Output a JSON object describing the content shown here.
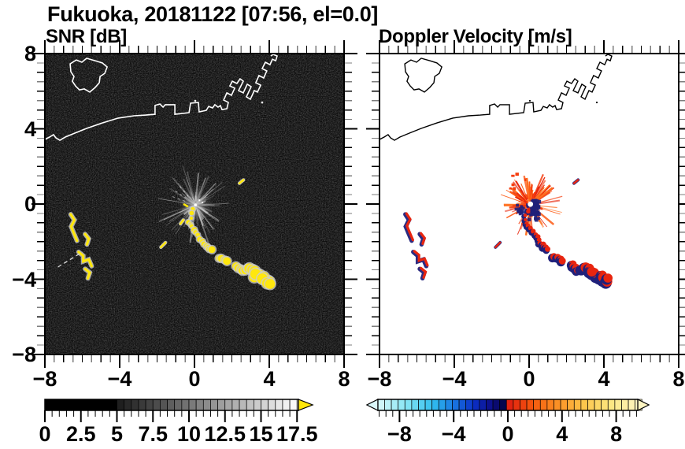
{
  "title": "Fukuoka, 20181122 [07:56, el=0.0]",
  "panels": {
    "left": {
      "subtitle": "SNR [dB]"
    },
    "right": {
      "subtitle": "Doppler Velocity [m/s]"
    }
  },
  "axes": {
    "x_tick_labels": [
      "−8",
      "−4",
      "0",
      "4",
      "8"
    ],
    "y_tick_labels": [
      "8",
      "4",
      "0",
      "−4",
      "−8"
    ],
    "x_tick_values": [
      -8,
      -4,
      0,
      4,
      8
    ],
    "y_tick_values": [
      8,
      4,
      0,
      -4,
      -8
    ],
    "x_range": [
      -8,
      8
    ],
    "y_range": [
      -8,
      8
    ],
    "major_step": 4,
    "minor_step": 0.5
  },
  "colors": {
    "frame": "#000000",
    "background": "#ffffff",
    "panel_bg_left": "#060606",
    "coast_left": "#ffffff",
    "coast_right": "#000000",
    "clutter_ray": "#a0a0a0",
    "echo_strong": "#ffe70d",
    "echo_fringe": "#cccccc",
    "vel_positive": "#e8250f",
    "vel_negative": "#20207a",
    "minor_tick_half": "#7d7d7d"
  },
  "colorbars": {
    "snr": {
      "tick_labels": [
        "0",
        "2.5",
        "5",
        "7.5",
        "10",
        "12.5",
        "15",
        "17.5"
      ],
      "tick_values": [
        0,
        2.5,
        5,
        7.5,
        10,
        12.5,
        15,
        17.5
      ],
      "range": [
        0,
        17.6
      ],
      "segment_step": 0.5,
      "stops": [
        [
          0,
          "#000000"
        ],
        [
          4.9,
          "#000000"
        ],
        [
          5.2,
          "#1e1e1e"
        ],
        [
          17.6,
          "#ffffff"
        ]
      ],
      "overflow_color": "#ffe60a"
    },
    "velocity": {
      "tick_labels": [
        "−8",
        "−4",
        "0",
        "4",
        "8"
      ],
      "tick_values": [
        -8,
        -4,
        0,
        4,
        8
      ],
      "range": [
        -9.6,
        9.6
      ],
      "segment_step": 0.5,
      "stops": [
        [
          -9.6,
          "#d9f7fa"
        ],
        [
          -7.5,
          "#86e5f4"
        ],
        [
          -5.5,
          "#30bdee"
        ],
        [
          -4,
          "#1a77e2"
        ],
        [
          -2.5,
          "#0b2fc6"
        ],
        [
          -1.2,
          "#0d0d86"
        ],
        [
          -0.1,
          "#03033e"
        ],
        [
          0.1,
          "#e02010"
        ],
        [
          1.8,
          "#f5570e"
        ],
        [
          3.5,
          "#fb8c22"
        ],
        [
          5.5,
          "#fdc348"
        ],
        [
          7.5,
          "#fce67e"
        ],
        [
          9.6,
          "#fdf5c2"
        ]
      ]
    }
  },
  "chart_data": {
    "type": "heatmap",
    "site": "Fukuoka",
    "date": "20181122",
    "time": "07:56",
    "elevation_deg": 0.0,
    "xlim": [
      -8,
      8
    ],
    "ylim": [
      -8,
      8
    ],
    "panels": [
      {
        "title": "SNR [dB]",
        "units": "dB",
        "colorbar_range": [
          0,
          17.5
        ],
        "colorbar_ticks": [
          0,
          2.5,
          5,
          7.5,
          10,
          12.5,
          15,
          17.5
        ],
        "palette": "black to white, overflow (>17.5 dB) yellow",
        "background": "black with faint speckle noise"
      },
      {
        "title": "Doppler Velocity [m/s]",
        "units": "m/s",
        "colorbar_range": [
          -9.6,
          9.6
        ],
        "colorbar_ticks": [
          -8,
          -4,
          0,
          4,
          8
        ],
        "palette": "pale cyan→blue→dark navy for negative, red→orange→cream for positive",
        "background": "white"
      }
    ],
    "features": {
      "radar_clutter_starburst": {
        "center": [
          0.05,
          -0.05
        ],
        "radius": 1.7,
        "ray_count": 130
      },
      "echo_chain": {
        "points": [
          [
            -0.08,
            -0.33
          ],
          [
            -0.29,
            -0.92
          ],
          [
            0,
            -1.38
          ],
          [
            0.34,
            -1.84
          ],
          [
            0.63,
            -2.26
          ],
          [
            0.88,
            -2.47
          ],
          [
            1.31,
            -2.85
          ],
          [
            1.73,
            -3.06
          ],
          [
            2.23,
            -3.31
          ],
          [
            2.57,
            -3.56
          ],
          [
            2.99,
            -3.43
          ],
          [
            3.33,
            -3.72
          ],
          [
            3.71,
            -3.93
          ],
          [
            4.0,
            -4.14
          ]
        ],
        "gaps_after_index": [
          5,
          7
        ]
      },
      "west_cluster": {
        "squiggles": [
          [
            [
              -6.62,
              -0.55
            ],
            [
              -6.42,
              -0.85
            ],
            [
              -6.6,
              -1.2
            ],
            [
              -6.45,
              -1.55
            ],
            [
              -6.28,
              -1.95
            ]
          ],
          [
            [
              -5.85,
              -1.6
            ],
            [
              -5.65,
              -1.85
            ],
            [
              -5.75,
              -2.15
            ]
          ],
          [
            [
              -6.2,
              -2.55
            ],
            [
              -5.95,
              -2.75
            ],
            [
              -5.95,
              -3.05
            ],
            [
              -5.65,
              -2.95
            ],
            [
              -5.5,
              -3.3
            ]
          ],
          [
            [
              -5.85,
              -3.45
            ],
            [
              -5.6,
              -3.65
            ],
            [
              -5.7,
              -3.95
            ]
          ]
        ]
      },
      "white_dash": [
        [
          -7.3,
          -3.35
        ],
        [
          -6.0,
          -2.55
        ]
      ],
      "center_dash": [
        [
          -0.55,
          -0.02
        ],
        [
          -0.38,
          -0.12
        ]
      ],
      "mid_dash": [
        [
          -1.8,
          -2.3
        ],
        [
          -1.55,
          -2.05
        ]
      ],
      "ne_speck": [
        [
          2.4,
          1.1
        ],
        [
          2.62,
          1.28
        ]
      ],
      "spur": [
        [
          -0.75,
          -1.05
        ],
        [
          -0.6,
          -0.85
        ]
      ]
    },
    "coastline": {
      "mainland": [
        [
          -8,
          3.43
        ],
        [
          -7.75,
          3.56
        ],
        [
          -7.54,
          3.69
        ],
        [
          -7.41,
          3.52
        ],
        [
          -7.2,
          3.39
        ],
        [
          -6.91,
          3.56
        ],
        [
          -6.4,
          3.77
        ],
        [
          -5.77,
          4.02
        ],
        [
          -4.93,
          4.31
        ],
        [
          -4.08,
          4.57
        ],
        [
          -3.24,
          4.69
        ],
        [
          -2.61,
          4.73
        ],
        [
          -2.11,
          4.77
        ],
        [
          -2.11,
          5.24
        ],
        [
          -1.85,
          5.32
        ],
        [
          -1.68,
          5.15
        ],
        [
          -1.56,
          5.28
        ],
        [
          -1.05,
          5.28
        ],
        [
          -1.05,
          4.77
        ],
        [
          -0.29,
          4.86
        ],
        [
          -0.21,
          5.36
        ],
        [
          0.21,
          5.4
        ],
        [
          0.25,
          4.9
        ],
        [
          0.63,
          4.98
        ],
        [
          0.76,
          5.19
        ],
        [
          0.97,
          5.11
        ],
        [
          1.09,
          5.28
        ],
        [
          1.26,
          5.15
        ],
        [
          1.39,
          5.23
        ],
        [
          1.47,
          5.02
        ],
        [
          1.73,
          5.07
        ],
        [
          1.81,
          5.4
        ],
        [
          1.56,
          5.53
        ],
        [
          1.73,
          5.91
        ],
        [
          1.98,
          5.78
        ],
        [
          2.15,
          6.16
        ],
        [
          1.89,
          6.28
        ],
        [
          2.02,
          6.53
        ],
        [
          2.27,
          6.41
        ],
        [
          2.44,
          6.66
        ],
        [
          2.61,
          6.53
        ],
        [
          2.36,
          6.03
        ],
        [
          2.61,
          5.91
        ],
        [
          2.82,
          6.37
        ],
        [
          3.03,
          6.24
        ],
        [
          2.78,
          5.7
        ],
        [
          2.99,
          5.57
        ],
        [
          3.2,
          6.03
        ],
        [
          3.37,
          5.95
        ],
        [
          3.54,
          6.32
        ],
        [
          3.28,
          6.45
        ],
        [
          3.45,
          6.83
        ],
        [
          3.7,
          6.7
        ],
        [
          3.87,
          7.08
        ],
        [
          3.62,
          7.2
        ],
        [
          3.79,
          7.54
        ],
        [
          4.04,
          7.41
        ],
        [
          4.17,
          7.7
        ],
        [
          4.34,
          7.62
        ],
        [
          4.42,
          7.87
        ],
        [
          4.21,
          7.96
        ],
        [
          4.08,
          7.87
        ]
      ],
      "island": [
        [
          -6.65,
          7.45
        ],
        [
          -6.32,
          7.66
        ],
        [
          -6.02,
          7.54
        ],
        [
          -5.77,
          7.75
        ],
        [
          -5.31,
          7.62
        ],
        [
          -4.93,
          7.5
        ],
        [
          -4.67,
          7.29
        ],
        [
          -4.8,
          6.95
        ],
        [
          -5.05,
          6.78
        ],
        [
          -5.09,
          6.45
        ],
        [
          -5.31,
          6.2
        ],
        [
          -5.6,
          5.95
        ],
        [
          -5.89,
          6.12
        ],
        [
          -6.15,
          6.07
        ],
        [
          -6.36,
          6.28
        ],
        [
          -6.53,
          6.53
        ],
        [
          -6.44,
          6.78
        ],
        [
          -6.61,
          7.03
        ]
      ],
      "specks": [
        [
          0.04,
          5.49
        ],
        [
          3.62,
          5.4
        ]
      ]
    }
  }
}
